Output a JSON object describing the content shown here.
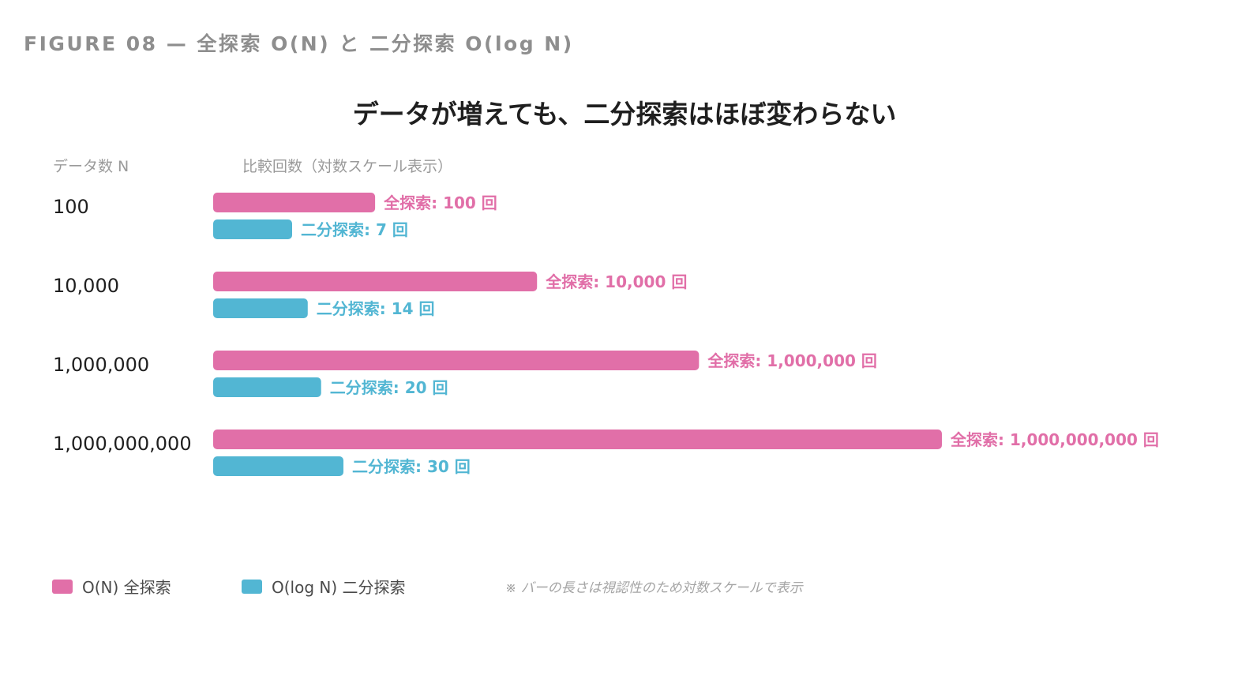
{
  "figure_label": "FIGURE 08 — 全探索 O(N) と 二分探索 O(log N)",
  "headers": {
    "left": "データ数 N",
    "right": "比較回数（対数スケール表示）"
  },
  "colors": {
    "linear": "#e16fa8",
    "binary": "#52b6d3"
  },
  "legend": {
    "linear": "O(N) 全探索",
    "binary": "O(log N) 二分探索"
  },
  "note": "※ バーの長さは視認性のため対数スケールで表示",
  "chart_data": {
    "type": "bar",
    "orientation": "horizontal",
    "scale": "log",
    "title": "データが増えても、二分探索はほぼ変わらない",
    "categories": [
      "100",
      "10,000",
      "1,000,000",
      "1,000,000,000"
    ],
    "series": [
      {
        "name": "O(N) 全探索",
        "values": [
          100,
          10000,
          1000000,
          1000000000
        ],
        "labels": [
          "全探索: 100 回",
          "全探索: 10,000 回",
          "全探索: 1,000,000 回",
          "全探索: 1,000,000,000 回"
        ]
      },
      {
        "name": "O(log N) 二分探索",
        "values": [
          7,
          14,
          20,
          30
        ],
        "labels": [
          "二分探索: 7 回",
          "二分探索: 14 回",
          "二分探索: 20 回",
          "二分探索: 30 回"
        ]
      }
    ]
  }
}
